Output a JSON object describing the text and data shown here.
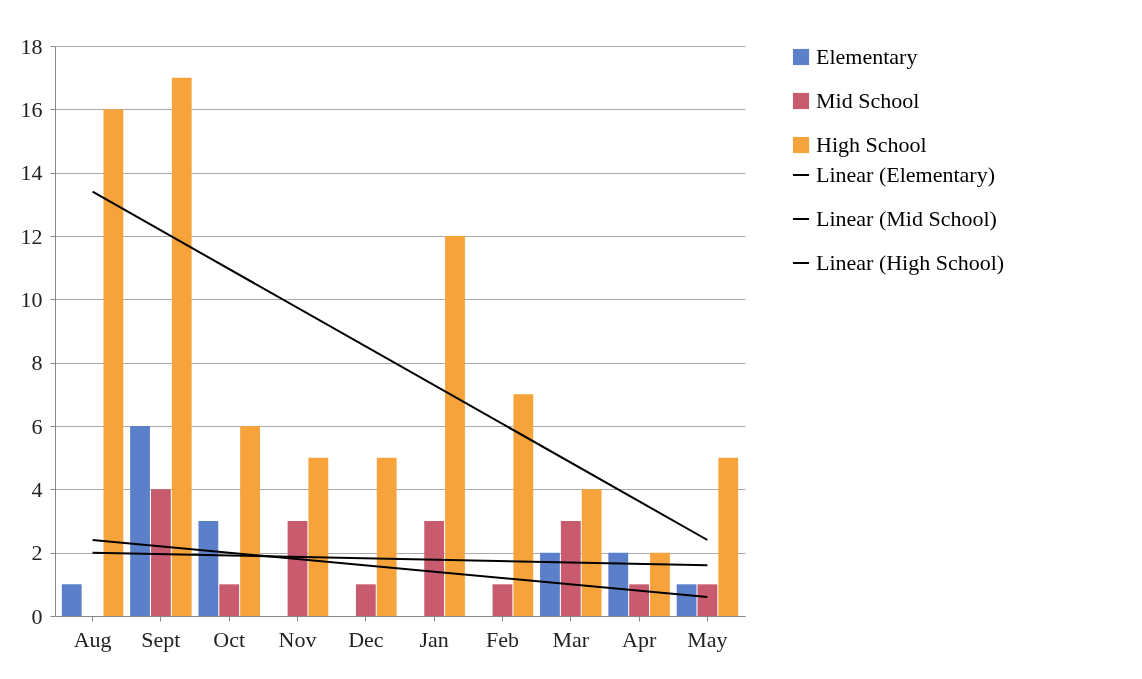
{
  "chart_data": {
    "type": "bar",
    "categories": [
      "Aug",
      "Sept",
      "Oct",
      "Nov",
      "Dec",
      "Jan",
      "Feb",
      "Mar",
      "Apr",
      "May"
    ],
    "series": [
      {
        "name": "Elementary",
        "color": "#5b7fc8",
        "values": [
          1,
          6,
          3,
          0,
          0,
          0,
          0,
          2,
          2,
          1
        ]
      },
      {
        "name": "Mid School",
        "color": "#c95b6e",
        "values": [
          0,
          4,
          1,
          3,
          1,
          3,
          1,
          3,
          1,
          1
        ]
      },
      {
        "name": "High School",
        "color": "#f5a33a",
        "values": [
          16,
          17,
          6,
          5,
          5,
          12,
          7,
          4,
          2,
          5
        ]
      },
      {
        "name": "Linear (Elementary)",
        "type": "line",
        "color": "#000000",
        "x": [
          "Aug",
          "May"
        ],
        "values": [
          2.4,
          0.6
        ]
      },
      {
        "name": "Linear (Mid School)",
        "type": "line",
        "color": "#000000",
        "x": [
          "Aug",
          "May"
        ],
        "values": [
          2.0,
          1.6
        ]
      },
      {
        "name": "Linear (High School)",
        "type": "line",
        "color": "#000000",
        "x": [
          "Aug",
          "May"
        ],
        "values": [
          13.4,
          2.4
        ]
      }
    ],
    "ylim": [
      0,
      18
    ],
    "yticks": [
      0,
      2,
      4,
      6,
      8,
      10,
      12,
      14,
      16,
      18
    ],
    "grid": "y",
    "legend": "right"
  }
}
